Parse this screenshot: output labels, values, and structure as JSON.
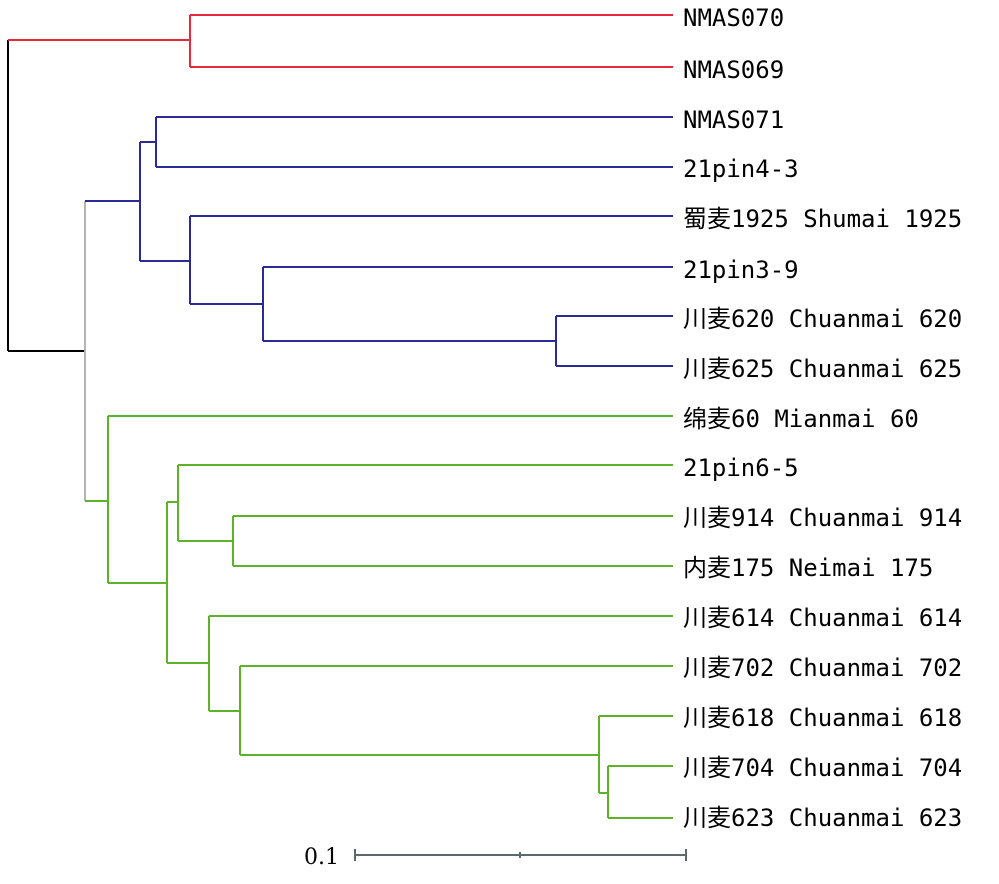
{
  "tree": {
    "colors": {
      "root": "#000000",
      "red_clade": "#e8283c",
      "blue_clade": "#2a2a96",
      "green_clade": "#5cb228",
      "stem": "#b4b4b4",
      "scale": "#5a6a6a"
    },
    "leaves": [
      "NMAS070",
      "NMAS069",
      "NMAS071",
      "21pin4-3",
      "蜀麦1925 Shumai 1925",
      "21pin3-9",
      "川麦620 Chuanmai 620",
      "川麦625 Chuanmai 625",
      "绵麦60 Mianmai 60",
      "21pin6-5",
      "川麦914 Chuanmai 914",
      "内麦175 Neimai 175",
      "川麦614 Chuanmai 614",
      "川麦702 Chuanmai 702",
      "川麦618 Chuanmai 618",
      "川麦704 Chuanmai 704",
      "川麦623 Chuanmai 623"
    ],
    "scale_bar": {
      "label": "0.1"
    }
  }
}
